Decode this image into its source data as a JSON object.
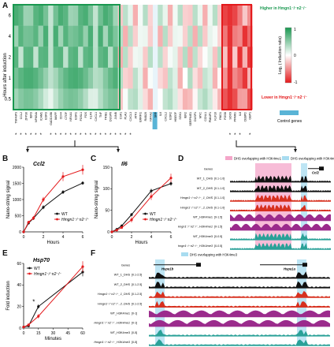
{
  "panel_letters": {
    "a": "A",
    "b": "B",
    "c": "C",
    "d": "D",
    "e": "E",
    "f": "F"
  },
  "heatmap": {
    "ylabel": "Hours after induction",
    "rows": [
      "6",
      "4",
      "2",
      "1",
      "0.5"
    ],
    "genes": [
      "TNFAIP3",
      "CCL2",
      "ZFP36",
      "IER3",
      "NFKBIA",
      "ICAM1",
      "EGR3",
      "GADD45B",
      "MAFF",
      "CD44",
      "CTGF",
      "NR4A1",
      "EGR1",
      "FOSL1",
      "FOS",
      "KLF6",
      "CXCL1",
      "TNF",
      "TRIB1",
      "DUSP6",
      "JUNB",
      "CSF1",
      "PLAU",
      "CXCL3",
      "ATF3",
      "ERRFI1",
      "RAB20",
      "NR4A2",
      "SRF",
      "IL6",
      "CXCL2",
      "EGR2",
      "HBEGF",
      "SGK1",
      "IER2",
      "SERPINE1",
      "DUSP1",
      "MYC",
      "CCNL1",
      "PMAIP1",
      "KLF10",
      "RND1",
      "FOSB",
      "SOX9",
      "PPARG",
      "IL8",
      "CEBPD",
      "GBP1"
    ],
    "control_genes": [
      "SRF",
      "GUSB"
    ],
    "legend_higher": "Higher in Hmgn1⁻/⁻n2⁻/⁻",
    "legend_lower": "Lower in Hmgn1⁻/⁻n2⁻/⁻",
    "colorbar_label": "Log₂ ( Induction ratio)",
    "colorbar_ticks": [
      "1",
      "0",
      "-1"
    ],
    "control_label": "Control genes",
    "colors": {
      "green": "#1a9850",
      "red": "#e41a1c",
      "control": "#5ab4d6"
    }
  },
  "chart_data": [
    {
      "type": "line",
      "title": "Ccl2",
      "xlabel": "Hours",
      "ylabel": "Nano-string signal",
      "x": [
        0,
        0.5,
        1,
        2,
        4,
        6
      ],
      "xlim": [
        0,
        6
      ],
      "ylim": [
        0,
        2000
      ],
      "yticks": [
        0,
        500,
        1000,
        1500,
        2000
      ],
      "xticks": [
        0,
        2,
        4,
        6
      ],
      "series": [
        {
          "name": "WT",
          "color": "#111111",
          "values": [
            0,
            270,
            420,
            760,
            1230,
            1510
          ],
          "err": [
            20,
            40,
            50,
            60,
            60,
            50
          ]
        },
        {
          "name": "Hmgn1⁻/⁻n2⁻/⁻",
          "color": "#e41a1c",
          "values": [
            0,
            300,
            430,
            1000,
            1710,
            1920
          ],
          "err": [
            20,
            40,
            60,
            80,
            140,
            150
          ]
        }
      ],
      "legend": "bottom-right"
    },
    {
      "type": "line",
      "title": "Il6",
      "xlabel": "Hours",
      "ylabel": "Nano-string signal",
      "x": [
        0,
        0.5,
        1,
        2,
        4,
        6
      ],
      "xlim": [
        0,
        6
      ],
      "ylim": [
        0,
        150
      ],
      "yticks": [
        0,
        50,
        100,
        150
      ],
      "xticks": [
        0,
        2,
        4,
        6
      ],
      "series": [
        {
          "name": "WT",
          "color": "#111111",
          "values": [
            0,
            6,
            14,
            40,
            95,
            112
          ],
          "err": [
            1,
            2,
            3,
            4,
            5,
            5
          ]
        },
        {
          "name": "Hmgn1⁻/⁻n2⁻/⁻",
          "color": "#e41a1c",
          "values": [
            0,
            4,
            10,
            28,
            82,
            125
          ],
          "err": [
            1,
            2,
            3,
            6,
            8,
            10
          ]
        }
      ],
      "legend": "bottom-right"
    },
    {
      "type": "line",
      "title": "Hsp70",
      "xlabel": "Minutes",
      "ylabel": "Fold induction",
      "x": [
        0,
        5,
        15,
        60
      ],
      "xlim": [
        0,
        60
      ],
      "ylim": [
        0,
        60
      ],
      "yticks": [
        0,
        20,
        40,
        60
      ],
      "xticks": [
        0,
        15,
        30,
        45,
        60
      ],
      "series": [
        {
          "name": "WT",
          "color": "#111111",
          "values": [
            1,
            2,
            20,
            52
          ],
          "err": [
            0.5,
            1,
            2,
            4
          ]
        },
        {
          "name": "Hmgn1⁻/⁻n2⁻/⁻",
          "color": "#e41a1c",
          "values": [
            1,
            3,
            11,
            57
          ],
          "err": [
            0.5,
            1,
            2,
            5
          ]
        }
      ],
      "annotation": "*",
      "legend": "top-left"
    }
  ],
  "track_d": {
    "legend_pink": "DHS overlapping with H3K4me1",
    "legend_blue": "DHS overlapping with H3K4me3",
    "gene": "Ccl2",
    "tracks": [
      {
        "label": "Genes",
        "range": ""
      },
      {
        "label": "WT_1_DHS",
        "range": "[0.1-1.0]"
      },
      {
        "label": "WT_2_DHS",
        "range": "[0.1-1.0]"
      },
      {
        "label": "Hmgn1⁻/⁻n2⁻/⁻_1_DHS",
        "range": "[0.1-1.0]"
      },
      {
        "label": "Hmgn1⁻/⁻n2⁻/⁻_2_DHS",
        "range": "[0.1-1.0]"
      },
      {
        "label": "WT_H3K4me1",
        "range": "[0-1.5]"
      },
      {
        "label": "Hmgn1⁻/⁻n2⁻/⁻_H3K4me1",
        "range": "[0-1.5]"
      },
      {
        "label": "WT_H3K4me3",
        "range": "[0-0.5]"
      },
      {
        "label": "Hmgn1⁻/⁻n2⁻/⁻_H3K4me3",
        "range": "[0-0.5]"
      }
    ]
  },
  "track_f": {
    "legend_blue": "DHS overlapping with H3K4me3",
    "gene1": "Hspa1b",
    "gene2": "Hspa1a",
    "tracks": [
      {
        "label": "Genes",
        "range": ""
      },
      {
        "label": "WT_1_DHS",
        "range": "[0.1-2.5]"
      },
      {
        "label": "WT_2_DHS",
        "range": "[0.1-2.5]"
      },
      {
        "label": "Hmgn1⁻/⁻n2⁻/⁻_1_DHS",
        "range": "[0.1-2.5]"
      },
      {
        "label": "Hmgn1⁻/⁻n2⁻/⁻_2_DHS",
        "range": "[0.1-2.5]"
      },
      {
        "label": "WT_H3K4me1",
        "range": "[0-1]"
      },
      {
        "label": "Hmgn1⁻/⁻n2⁻/⁻_H3K4me1",
        "range": "[0-1]"
      },
      {
        "label": "WT_H3K4me3",
        "range": "[0-5]"
      },
      {
        "label": "Hmgn1⁻/⁻n2⁻/⁻_H3K4me3",
        "range": "[0-5]"
      }
    ]
  }
}
